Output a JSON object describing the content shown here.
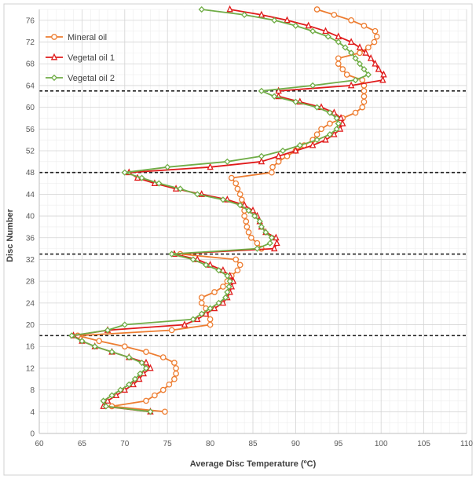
{
  "chart_data": {
    "type": "line",
    "title": "",
    "xlabel": "Average Disc Temperature (ºC)",
    "ylabel": "Disc Number",
    "xlim": [
      60,
      110
    ],
    "ylim": [
      0,
      78
    ],
    "x_ticks": [
      60,
      65,
      70,
      75,
      80,
      85,
      90,
      95,
      100,
      105,
      110
    ],
    "y_ticks": [
      0,
      4,
      8,
      12,
      16,
      20,
      24,
      28,
      32,
      36,
      40,
      44,
      48,
      52,
      56,
      60,
      64,
      68,
      72,
      76
    ],
    "grid": true,
    "legend_position": "top-left",
    "reference_lines": [
      {
        "axis": "y",
        "value": 18,
        "style": "dashed",
        "color": "#222222"
      },
      {
        "axis": "y",
        "value": 33,
        "style": "dashed",
        "color": "#222222"
      },
      {
        "axis": "y",
        "value": 48,
        "style": "dashed",
        "color": "#222222"
      },
      {
        "axis": "y",
        "value": 63,
        "style": "dashed",
        "color": "#222222"
      }
    ],
    "series": [
      {
        "name": "Mineral oil",
        "color": "#ed7d31",
        "marker": "circle",
        "points": [
          [
            74.7,
            4
          ],
          [
            68.5,
            5
          ],
          [
            72.5,
            6
          ],
          [
            73.5,
            7
          ],
          [
            74.5,
            8
          ],
          [
            75.2,
            9
          ],
          [
            75.8,
            10
          ],
          [
            76.0,
            11
          ],
          [
            76.0,
            12
          ],
          [
            75.8,
            13
          ],
          [
            74.5,
            14
          ],
          [
            72.5,
            15
          ],
          [
            70.0,
            16
          ],
          [
            67.0,
            17
          ],
          [
            64.5,
            18
          ],
          [
            75.5,
            19
          ],
          [
            80.0,
            20
          ],
          [
            80.0,
            21
          ],
          [
            79.5,
            22
          ],
          [
            79.5,
            23
          ],
          [
            79.0,
            24
          ],
          [
            79.0,
            25
          ],
          [
            80.5,
            26
          ],
          [
            81.5,
            27
          ],
          [
            82.0,
            28
          ],
          [
            82.5,
            29
          ],
          [
            83.2,
            30
          ],
          [
            83.5,
            31
          ],
          [
            83.0,
            32
          ],
          [
            76.5,
            33
          ],
          [
            86.0,
            34
          ],
          [
            85.5,
            35
          ],
          [
            84.8,
            36
          ],
          [
            84.5,
            37
          ],
          [
            84.3,
            38
          ],
          [
            84.2,
            39
          ],
          [
            84.0,
            40
          ],
          [
            84.0,
            41
          ],
          [
            83.8,
            42
          ],
          [
            83.7,
            43
          ],
          [
            83.5,
            44
          ],
          [
            83.2,
            45
          ],
          [
            83.0,
            46
          ],
          [
            82.5,
            47
          ],
          [
            87.2,
            48
          ],
          [
            87.3,
            49
          ],
          [
            88.0,
            50
          ],
          [
            89.0,
            51
          ],
          [
            90.0,
            52
          ],
          [
            91.0,
            53
          ],
          [
            92.0,
            54
          ],
          [
            92.5,
            55
          ],
          [
            93.0,
            56
          ],
          [
            94.0,
            57
          ],
          [
            95.5,
            58
          ],
          [
            97.0,
            59
          ],
          [
            97.8,
            60
          ],
          [
            98.0,
            61
          ],
          [
            98.0,
            62
          ],
          [
            98.0,
            63
          ],
          [
            98.0,
            64
          ],
          [
            97.8,
            65
          ],
          [
            96.0,
            66
          ],
          [
            95.5,
            67
          ],
          [
            95.0,
            68
          ],
          [
            95.0,
            69
          ],
          [
            97.5,
            70
          ],
          [
            98.5,
            71
          ],
          [
            99.2,
            72
          ],
          [
            99.5,
            73
          ],
          [
            99.3,
            74
          ],
          [
            98.0,
            75
          ],
          [
            96.5,
            76
          ],
          [
            94.5,
            77
          ],
          [
            92.5,
            78
          ]
        ]
      },
      {
        "name": "Vegetal oil 1",
        "color": "#e01b1b",
        "marker": "triangle",
        "points": [
          [
            73.0,
            4
          ],
          [
            67.5,
            5
          ],
          [
            68.0,
            6
          ],
          [
            69.0,
            7
          ],
          [
            70.0,
            8
          ],
          [
            71.0,
            9
          ],
          [
            71.7,
            10
          ],
          [
            72.2,
            11
          ],
          [
            73.0,
            12
          ],
          [
            72.5,
            13
          ],
          [
            70.5,
            14
          ],
          [
            68.5,
            15
          ],
          [
            66.5,
            16
          ],
          [
            65.0,
            17
          ],
          [
            64.0,
            18
          ],
          [
            68.0,
            19
          ],
          [
            77.0,
            20
          ],
          [
            78.5,
            21
          ],
          [
            79.5,
            22
          ],
          [
            80.5,
            23
          ],
          [
            81.5,
            24
          ],
          [
            82.0,
            25
          ],
          [
            82.3,
            26
          ],
          [
            82.5,
            27
          ],
          [
            82.7,
            28
          ],
          [
            82.3,
            29
          ],
          [
            81.5,
            30
          ],
          [
            80.0,
            31
          ],
          [
            78.5,
            32
          ],
          [
            75.8,
            33
          ],
          [
            87.5,
            34
          ],
          [
            87.8,
            35
          ],
          [
            87.7,
            36
          ],
          [
            86.5,
            37
          ],
          [
            86.0,
            38
          ],
          [
            85.8,
            39
          ],
          [
            85.5,
            40
          ],
          [
            85.0,
            41
          ],
          [
            84.0,
            42
          ],
          [
            82.0,
            43
          ],
          [
            79.0,
            44
          ],
          [
            76.0,
            45
          ],
          [
            73.5,
            46
          ],
          [
            71.5,
            47
          ],
          [
            70.5,
            48
          ],
          [
            80.0,
            49
          ],
          [
            86.0,
            50
          ],
          [
            88.0,
            51
          ],
          [
            90.0,
            52
          ],
          [
            92.0,
            53
          ],
          [
            93.5,
            54
          ],
          [
            94.5,
            55
          ],
          [
            95.2,
            56
          ],
          [
            95.5,
            57
          ],
          [
            95.3,
            58
          ],
          [
            94.5,
            59
          ],
          [
            93.0,
            60
          ],
          [
            90.5,
            61
          ],
          [
            88.0,
            62
          ],
          [
            88.0,
            63
          ],
          [
            96.5,
            64
          ],
          [
            100.2,
            65
          ],
          [
            100.3,
            66
          ],
          [
            99.7,
            67
          ],
          [
            99.3,
            68
          ],
          [
            98.8,
            69
          ],
          [
            98.2,
            70
          ],
          [
            97.5,
            71
          ],
          [
            96.5,
            72
          ],
          [
            95.0,
            73
          ],
          [
            93.5,
            74
          ],
          [
            91.5,
            75
          ],
          [
            89.0,
            76
          ],
          [
            86.0,
            77
          ],
          [
            82.3,
            78
          ]
        ]
      },
      {
        "name": "Vegetal oil 2",
        "color": "#70ad47",
        "marker": "diamond",
        "points": [
          [
            73.0,
            4
          ],
          [
            67.8,
            5
          ],
          [
            67.5,
            6
          ],
          [
            68.5,
            7
          ],
          [
            69.5,
            8
          ],
          [
            70.5,
            9
          ],
          [
            71.2,
            10
          ],
          [
            71.8,
            11
          ],
          [
            72.5,
            12
          ],
          [
            72.0,
            13
          ],
          [
            70.5,
            14
          ],
          [
            68.5,
            15
          ],
          [
            66.5,
            16
          ],
          [
            65.0,
            17
          ],
          [
            63.8,
            18
          ],
          [
            68.0,
            19
          ],
          [
            70.0,
            20
          ],
          [
            78.0,
            21
          ],
          [
            79.0,
            22
          ],
          [
            80.0,
            23
          ],
          [
            81.0,
            24
          ],
          [
            81.8,
            25
          ],
          [
            82.0,
            26
          ],
          [
            82.2,
            27
          ],
          [
            82.3,
            28
          ],
          [
            82.0,
            29
          ],
          [
            81.0,
            30
          ],
          [
            79.5,
            31
          ],
          [
            78.0,
            32
          ],
          [
            75.5,
            33
          ],
          [
            85.5,
            34
          ],
          [
            87.0,
            35
          ],
          [
            87.2,
            36
          ],
          [
            86.5,
            37
          ],
          [
            86.0,
            38
          ],
          [
            85.8,
            39
          ],
          [
            85.2,
            40
          ],
          [
            84.5,
            41
          ],
          [
            83.5,
            42
          ],
          [
            81.5,
            43
          ],
          [
            78.5,
            44
          ],
          [
            76.5,
            45
          ],
          [
            74.0,
            46
          ],
          [
            72.0,
            47
          ],
          [
            70.0,
            48
          ],
          [
            75.0,
            49
          ],
          [
            82.0,
            50
          ],
          [
            86.0,
            51
          ],
          [
            88.5,
            52
          ],
          [
            90.5,
            53
          ],
          [
            92.5,
            54
          ],
          [
            94.0,
            55
          ],
          [
            94.8,
            56
          ],
          [
            95.0,
            57
          ],
          [
            94.8,
            58
          ],
          [
            94.0,
            59
          ],
          [
            92.5,
            60
          ],
          [
            90.0,
            61
          ],
          [
            87.5,
            62
          ],
          [
            86.0,
            63
          ],
          [
            92.0,
            64
          ],
          [
            97.0,
            65
          ],
          [
            98.5,
            66
          ],
          [
            98.0,
            67
          ],
          [
            97.5,
            68
          ],
          [
            97.0,
            69
          ],
          [
            96.5,
            70
          ],
          [
            95.8,
            71
          ],
          [
            95.0,
            72
          ],
          [
            93.8,
            73
          ],
          [
            92.0,
            74
          ],
          [
            90.0,
            75
          ],
          [
            87.5,
            76
          ],
          [
            84.0,
            77
          ],
          [
            79.0,
            78
          ]
        ]
      }
    ]
  }
}
